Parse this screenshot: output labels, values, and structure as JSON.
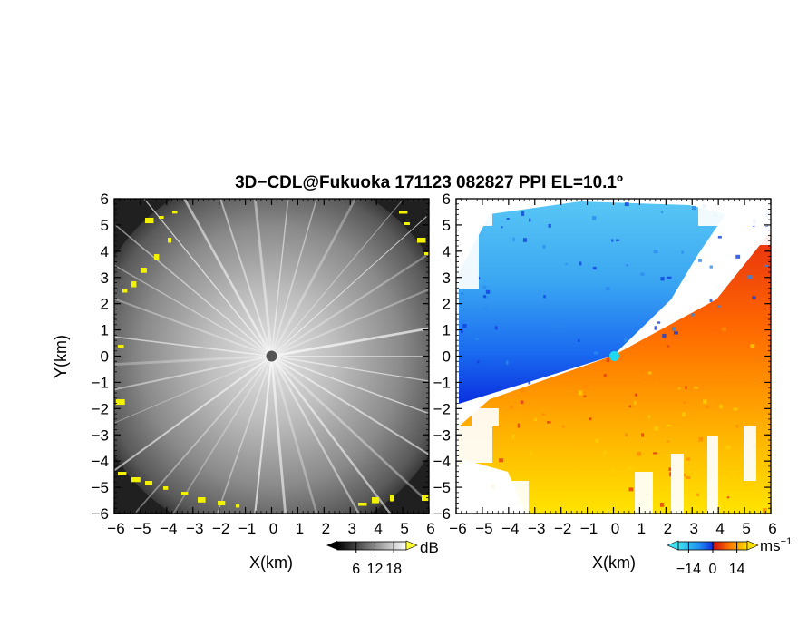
{
  "chart_data": [
    {
      "type": "heatmap",
      "title": "3D−CDL@Fukuoka 171123 082827 PPI EL=10.1º",
      "xlabel": "X(km)",
      "ylabel": "Y(km)",
      "xlim": [
        -6,
        6
      ],
      "ylim": [
        -6,
        6
      ],
      "x_ticks": [
        "−6",
        "−5",
        "−4",
        "−3",
        "−2",
        "−1",
        "0",
        "1",
        "2",
        "3",
        "4",
        "5",
        "6"
      ],
      "y_ticks": [
        "−6",
        "−5",
        "−4",
        "−3",
        "−2",
        "−1",
        "0",
        "1",
        "2",
        "3",
        "4",
        "5",
        "6"
      ],
      "colorscale": "grayscale",
      "colorbar": {
        "unit": "dB",
        "ticks": [
          "6",
          "12",
          "18"
        ],
        "range": [
          0,
          22
        ]
      },
      "highlight_color": "#f2f200",
      "center_marker_color": "#555555"
    },
    {
      "type": "heatmap",
      "xlabel": "X(km)",
      "xlim": [
        -6,
        6
      ],
      "ylim": [
        -6,
        6
      ],
      "x_ticks": [
        "−6",
        "−5",
        "−4",
        "−3",
        "−2",
        "−1",
        "0",
        "1",
        "2",
        "3",
        "4",
        "5",
        "6"
      ],
      "y_ticks": [
        "−6",
        "−5",
        "−4",
        "−3",
        "−2",
        "−1",
        "0",
        "1",
        "2",
        "3",
        "4",
        "5",
        "6"
      ],
      "colorscale": "cyan-blue-red-orange-yellow",
      "colorbar": {
        "unit": "ms",
        "unit_exponent": "−1",
        "ticks": [
          "−14",
          "0",
          "14"
        ],
        "range": [
          -20,
          20
        ]
      },
      "center_marker_color": "#22d8f0"
    }
  ]
}
